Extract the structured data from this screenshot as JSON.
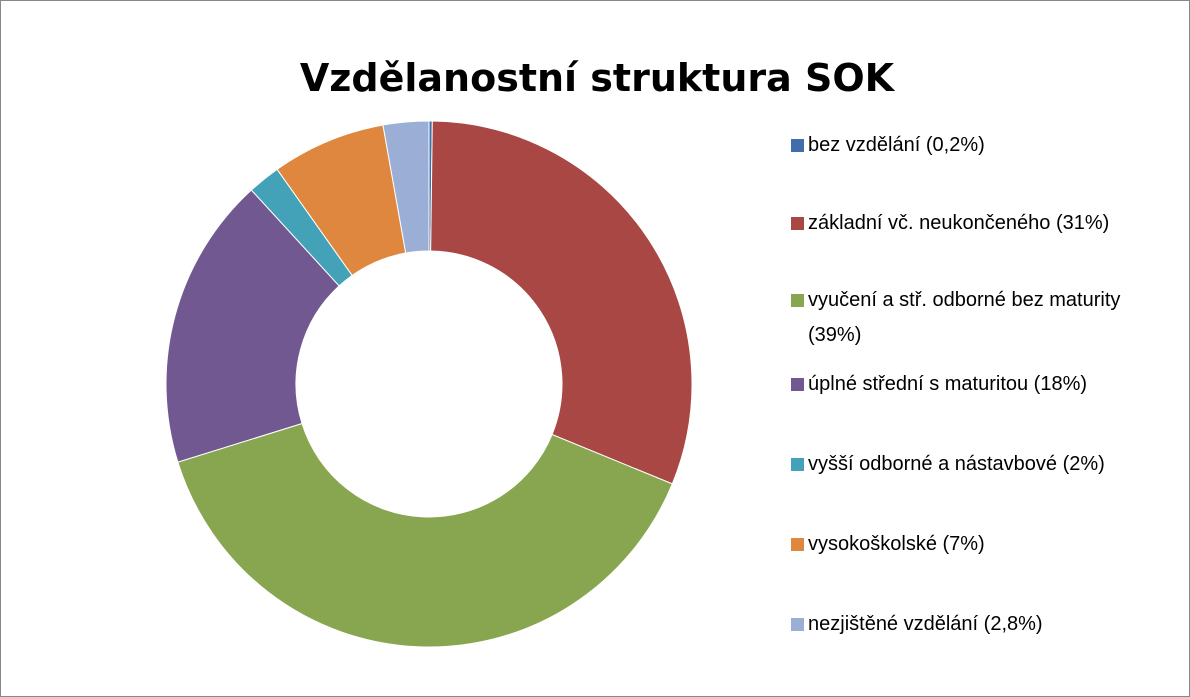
{
  "chart_data": {
    "type": "donut",
    "title": "Vzdělanostní struktura SOK",
    "categories": [
      "bez vzdělání (0,2%)",
      "základní vč. neukončeného (31%)",
      "vyučení a stř. odborné bez maturity (39%)",
      "úplné střední s maturitou (18%)",
      "vyšší odborné a nástavbové (2%)",
      "vysokoškolské (7%)",
      "nezjištěné vzdělání (2,8%)"
    ],
    "values": [
      0.2,
      31,
      39,
      18,
      2,
      7,
      2.8
    ],
    "colors": [
      "#3f6eaa",
      "#a84743",
      "#88a64f",
      "#715891",
      "#43a1b8",
      "#e0873f",
      "#9aaed6"
    ],
    "legend": "right"
  }
}
